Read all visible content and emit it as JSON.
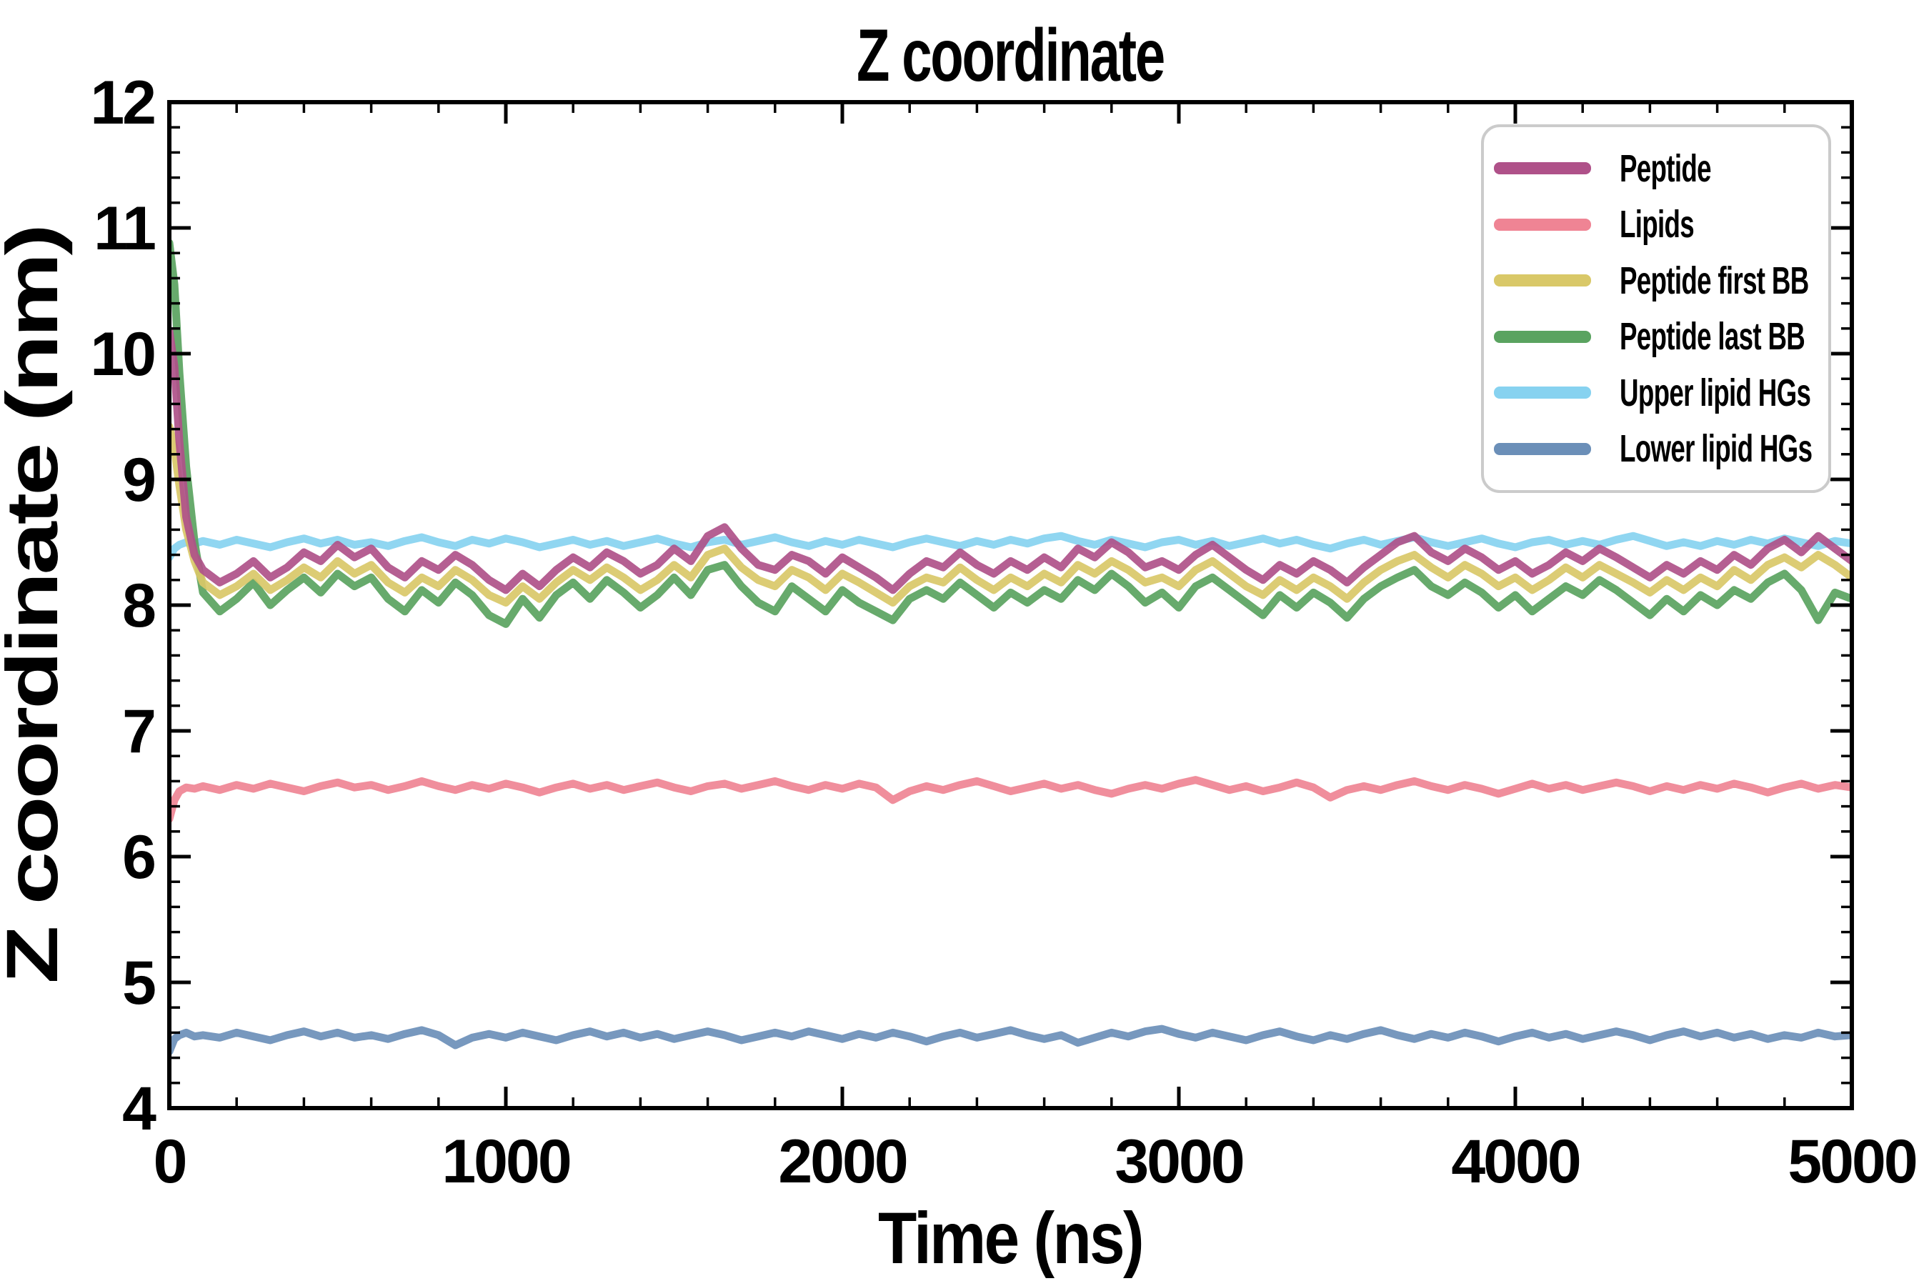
{
  "title": "Z coordinate",
  "x_axis": {
    "label": "Time (ns)",
    "min": 0,
    "max": 5000,
    "major_step": 1000,
    "minor_step": 200,
    "ticks": [
      {
        "v": 0,
        "label": "0"
      },
      {
        "v": 1000,
        "label": "1000"
      },
      {
        "v": 2000,
        "label": "2000"
      },
      {
        "v": 3000,
        "label": "3000"
      },
      {
        "v": 4000,
        "label": "4000"
      },
      {
        "v": 5000,
        "label": "5000"
      }
    ]
  },
  "y_axis": {
    "label": "Z coordinate (nm)",
    "min": 4,
    "max": 12,
    "major_step": 1,
    "minor_step": 0.2,
    "ticks": [
      {
        "v": 4,
        "label": "4"
      },
      {
        "v": 5,
        "label": "5"
      },
      {
        "v": 6,
        "label": "6"
      },
      {
        "v": 7,
        "label": "7"
      },
      {
        "v": 8,
        "label": "8"
      },
      {
        "v": 9,
        "label": "9"
      },
      {
        "v": 10,
        "label": "10"
      },
      {
        "v": 11,
        "label": "11"
      },
      {
        "v": 12,
        "label": "12"
      }
    ]
  },
  "legend": {
    "position": "upper right",
    "items": [
      {
        "label": "Peptide"
      },
      {
        "label": "Lipids"
      },
      {
        "label": "Peptide first BB"
      },
      {
        "label": "Peptide last BB"
      },
      {
        "label": "Upper lipid HGs"
      },
      {
        "label": "Lower lipid HGs"
      }
    ]
  },
  "chart_data": {
    "type": "line",
    "title": "Z coordinate",
    "xlabel": "Time (ns)",
    "ylabel": "Z coordinate (nm)",
    "xlim": [
      0,
      5000
    ],
    "ylim": [
      4,
      12
    ],
    "grid": false,
    "legend_position": "upper right",
    "x": [
      0,
      15,
      30,
      50,
      75,
      100,
      150,
      200,
      250,
      300,
      350,
      400,
      450,
      500,
      550,
      600,
      650,
      700,
      750,
      800,
      850,
      900,
      950,
      1000,
      1050,
      1100,
      1150,
      1200,
      1250,
      1300,
      1350,
      1400,
      1450,
      1500,
      1550,
      1600,
      1650,
      1700,
      1750,
      1800,
      1850,
      1900,
      1950,
      2000,
      2050,
      2100,
      2150,
      2200,
      2250,
      2300,
      2350,
      2400,
      2450,
      2500,
      2550,
      2600,
      2650,
      2700,
      2750,
      2800,
      2850,
      2900,
      2950,
      3000,
      3050,
      3100,
      3150,
      3200,
      3250,
      3300,
      3350,
      3400,
      3450,
      3500,
      3550,
      3600,
      3650,
      3700,
      3750,
      3800,
      3850,
      3900,
      3950,
      4000,
      4050,
      4100,
      4150,
      4200,
      4250,
      4300,
      4350,
      4400,
      4450,
      4500,
      4550,
      4600,
      4650,
      4700,
      4750,
      4800,
      4850,
      4900,
      4950,
      5000
    ],
    "series": [
      {
        "name": "Upper lipid HGs",
        "color": "#87d2f0",
        "values": [
          8.38,
          8.45,
          8.48,
          8.5,
          8.49,
          8.51,
          8.48,
          8.52,
          8.49,
          8.46,
          8.5,
          8.53,
          8.49,
          8.52,
          8.48,
          8.5,
          8.47,
          8.51,
          8.54,
          8.5,
          8.47,
          8.52,
          8.49,
          8.53,
          8.5,
          8.46,
          8.49,
          8.52,
          8.48,
          8.51,
          8.47,
          8.5,
          8.53,
          8.49,
          8.46,
          8.5,
          8.52,
          8.48,
          8.51,
          8.54,
          8.5,
          8.47,
          8.51,
          8.48,
          8.52,
          8.49,
          8.46,
          8.5,
          8.53,
          8.5,
          8.47,
          8.51,
          8.48,
          8.52,
          8.49,
          8.53,
          8.55,
          8.51,
          8.48,
          8.52,
          8.49,
          8.46,
          8.5,
          8.52,
          8.48,
          8.51,
          8.47,
          8.5,
          8.53,
          8.49,
          8.52,
          8.48,
          8.45,
          8.49,
          8.52,
          8.48,
          8.51,
          8.54,
          8.5,
          8.47,
          8.5,
          8.53,
          8.49,
          8.46,
          8.5,
          8.52,
          8.48,
          8.51,
          8.48,
          8.52,
          8.55,
          8.51,
          8.47,
          8.5,
          8.47,
          8.51,
          8.48,
          8.52,
          8.49,
          8.53,
          8.5,
          8.47,
          8.51,
          8.49
        ]
      },
      {
        "name": "Lower lipid HGs",
        "color": "#6b8fb8",
        "values": [
          4.45,
          4.55,
          4.58,
          4.6,
          4.57,
          4.58,
          4.56,
          4.6,
          4.57,
          4.54,
          4.58,
          4.61,
          4.57,
          4.6,
          4.56,
          4.58,
          4.55,
          4.59,
          4.62,
          4.58,
          4.5,
          4.56,
          4.59,
          4.56,
          4.6,
          4.57,
          4.54,
          4.58,
          4.61,
          4.57,
          4.6,
          4.56,
          4.59,
          4.55,
          4.58,
          4.61,
          4.58,
          4.54,
          4.57,
          4.6,
          4.57,
          4.61,
          4.58,
          4.55,
          4.59,
          4.56,
          4.6,
          4.57,
          4.53,
          4.57,
          4.6,
          4.56,
          4.59,
          4.62,
          4.58,
          4.55,
          4.58,
          4.52,
          4.56,
          4.6,
          4.57,
          4.61,
          4.63,
          4.59,
          4.56,
          4.6,
          4.57,
          4.54,
          4.58,
          4.61,
          4.57,
          4.54,
          4.58,
          4.55,
          4.59,
          4.62,
          4.58,
          4.55,
          4.59,
          4.56,
          4.6,
          4.57,
          4.53,
          4.57,
          4.6,
          4.56,
          4.59,
          4.55,
          4.58,
          4.61,
          4.58,
          4.54,
          4.58,
          4.61,
          4.57,
          4.6,
          4.56,
          4.59,
          4.55,
          4.58,
          4.56,
          4.6,
          4.57,
          4.58
        ]
      },
      {
        "name": "Lipids",
        "color": "#ef8494",
        "values": [
          6.3,
          6.45,
          6.52,
          6.55,
          6.54,
          6.56,
          6.53,
          6.57,
          6.54,
          6.58,
          6.55,
          6.52,
          6.56,
          6.59,
          6.55,
          6.57,
          6.53,
          6.56,
          6.6,
          6.56,
          6.53,
          6.57,
          6.54,
          6.58,
          6.55,
          6.51,
          6.55,
          6.58,
          6.54,
          6.57,
          6.53,
          6.56,
          6.59,
          6.55,
          6.52,
          6.56,
          6.58,
          6.54,
          6.57,
          6.6,
          6.56,
          6.53,
          6.57,
          6.54,
          6.58,
          6.55,
          6.45,
          6.52,
          6.56,
          6.53,
          6.57,
          6.6,
          6.56,
          6.52,
          6.55,
          6.58,
          6.54,
          6.57,
          6.53,
          6.5,
          6.54,
          6.57,
          6.54,
          6.58,
          6.61,
          6.57,
          6.53,
          6.56,
          6.52,
          6.55,
          6.59,
          6.55,
          6.47,
          6.53,
          6.56,
          6.53,
          6.57,
          6.6,
          6.56,
          6.53,
          6.57,
          6.54,
          6.5,
          6.54,
          6.58,
          6.54,
          6.57,
          6.53,
          6.56,
          6.59,
          6.56,
          6.52,
          6.56,
          6.53,
          6.57,
          6.54,
          6.58,
          6.55,
          6.51,
          6.55,
          6.58,
          6.54,
          6.57,
          6.55
        ]
      },
      {
        "name": "Peptide last BB",
        "color": "#5aa360",
        "values": [
          10.88,
          10.55,
          9.85,
          9.1,
          8.5,
          8.1,
          7.95,
          8.05,
          8.18,
          8.0,
          8.12,
          8.22,
          8.1,
          8.25,
          8.15,
          8.22,
          8.05,
          7.95,
          8.12,
          8.02,
          8.18,
          8.08,
          7.92,
          7.85,
          8.05,
          7.9,
          8.08,
          8.18,
          8.05,
          8.2,
          8.1,
          7.98,
          8.08,
          8.22,
          8.08,
          8.28,
          8.32,
          8.15,
          8.02,
          7.95,
          8.15,
          8.05,
          7.95,
          8.12,
          8.02,
          7.95,
          7.88,
          8.05,
          8.12,
          8.05,
          8.18,
          8.08,
          7.98,
          8.1,
          8.02,
          8.12,
          8.05,
          8.2,
          8.12,
          8.25,
          8.15,
          8.02,
          8.1,
          7.98,
          8.15,
          8.22,
          8.12,
          8.02,
          7.92,
          8.08,
          7.98,
          8.1,
          8.02,
          7.9,
          8.05,
          8.15,
          8.22,
          8.28,
          8.15,
          8.08,
          8.18,
          8.1,
          7.98,
          8.08,
          7.95,
          8.05,
          8.15,
          8.08,
          8.2,
          8.12,
          8.02,
          7.92,
          8.05,
          7.95,
          8.08,
          8.0,
          8.12,
          8.05,
          8.18,
          8.25,
          8.12,
          7.88,
          8.1,
          8.05
        ]
      },
      {
        "name": "Peptide first BB",
        "color": "#d9c868",
        "values": [
          9.42,
          9.25,
          8.95,
          8.6,
          8.35,
          8.18,
          8.08,
          8.15,
          8.25,
          8.12,
          8.2,
          8.3,
          8.22,
          8.35,
          8.25,
          8.32,
          8.18,
          8.1,
          8.22,
          8.15,
          8.28,
          8.2,
          8.08,
          8.02,
          8.15,
          8.05,
          8.18,
          8.28,
          8.2,
          8.3,
          8.22,
          8.12,
          8.2,
          8.32,
          8.22,
          8.4,
          8.45,
          8.3,
          8.2,
          8.15,
          8.28,
          8.22,
          8.12,
          8.25,
          8.18,
          8.1,
          8.02,
          8.15,
          8.22,
          8.18,
          8.3,
          8.2,
          8.12,
          8.22,
          8.15,
          8.25,
          8.18,
          8.32,
          8.25,
          8.35,
          8.28,
          8.18,
          8.22,
          8.15,
          8.28,
          8.35,
          8.25,
          8.15,
          8.08,
          8.2,
          8.12,
          8.22,
          8.15,
          8.05,
          8.18,
          8.28,
          8.35,
          8.4,
          8.3,
          8.22,
          8.32,
          8.25,
          8.15,
          8.22,
          8.12,
          8.2,
          8.3,
          8.22,
          8.32,
          8.25,
          8.18,
          8.1,
          8.2,
          8.12,
          8.22,
          8.15,
          8.28,
          8.2,
          8.32,
          8.38,
          8.3,
          8.4,
          8.32,
          8.22
        ]
      },
      {
        "name": "Peptide",
        "color": "#af5189",
        "values": [
          10.18,
          9.9,
          9.3,
          8.7,
          8.4,
          8.28,
          8.18,
          8.25,
          8.35,
          8.22,
          8.3,
          8.42,
          8.35,
          8.48,
          8.38,
          8.45,
          8.3,
          8.22,
          8.35,
          8.28,
          8.4,
          8.32,
          8.2,
          8.12,
          8.25,
          8.15,
          8.28,
          8.38,
          8.3,
          8.42,
          8.35,
          8.25,
          8.32,
          8.45,
          8.35,
          8.55,
          8.62,
          8.45,
          8.32,
          8.28,
          8.4,
          8.35,
          8.25,
          8.38,
          8.3,
          8.22,
          8.12,
          8.25,
          8.35,
          8.3,
          8.42,
          8.32,
          8.25,
          8.35,
          8.28,
          8.38,
          8.3,
          8.45,
          8.38,
          8.5,
          8.42,
          8.3,
          8.35,
          8.28,
          8.4,
          8.48,
          8.38,
          8.28,
          8.2,
          8.32,
          8.25,
          8.35,
          8.28,
          8.18,
          8.3,
          8.4,
          8.5,
          8.55,
          8.42,
          8.35,
          8.45,
          8.38,
          8.28,
          8.35,
          8.25,
          8.32,
          8.42,
          8.35,
          8.45,
          8.38,
          8.3,
          8.22,
          8.32,
          8.25,
          8.35,
          8.28,
          8.4,
          8.32,
          8.45,
          8.52,
          8.42,
          8.55,
          8.45,
          8.35
        ]
      }
    ],
    "legend_order": [
      "Peptide",
      "Lipids",
      "Peptide first BB",
      "Peptide last BB",
      "Upper lipid HGs",
      "Lower lipid HGs"
    ]
  }
}
